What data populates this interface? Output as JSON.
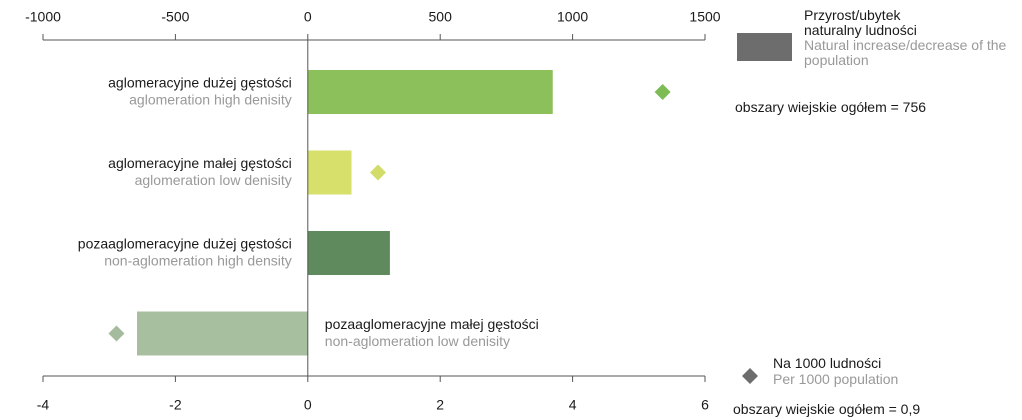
{
  "chart_data": {
    "type": "bar",
    "categories": [
      "aglomeracyjne dużej gęstości",
      "aglomeracyjne małej gęstości",
      "pozaaglomeracyjne dużej gęstości",
      "pozaaglomeracyjne małej gęstości"
    ],
    "categories_en": [
      "aglomeration high denisity",
      "aglomeration low denisity",
      "non-aglomeration high density",
      "non-aglomeration low denisity"
    ],
    "series": [
      {
        "name": "Przyrost/ubytek naturalny ludności",
        "name_en": "Natural increase/decrease of the population",
        "color": "#6d6d6d",
        "colors": [
          "#8bc05a",
          "#d6e06b",
          "#5e8a5e",
          "#a7bf9f"
        ],
        "values": [
          925,
          165,
          310,
          -645
        ],
        "axis": "x"
      },
      {
        "name": "Na 1000 ludności",
        "name_en": "Per 1000 population",
        "color": "#6d6d6d",
        "colors": [
          "#7dbb55",
          "#d2dc6a",
          "#5e8a5e",
          "#a4bc9d"
        ],
        "values": [
          5.36,
          1.06,
          null,
          -2.89
        ],
        "axis": "x2"
      }
    ],
    "xlim": [
      -1000,
      1500
    ],
    "xticks": [
      -1000,
      -500,
      0,
      500,
      1000,
      1500
    ],
    "x2lim": [
      -4,
      6
    ],
    "x2ticks": [
      -4,
      -2,
      0,
      2,
      4,
      6
    ],
    "annotations": [
      "obszary wiejskie ogółem = 756",
      "obszary wiejskie ogółem = 0,9"
    ]
  }
}
